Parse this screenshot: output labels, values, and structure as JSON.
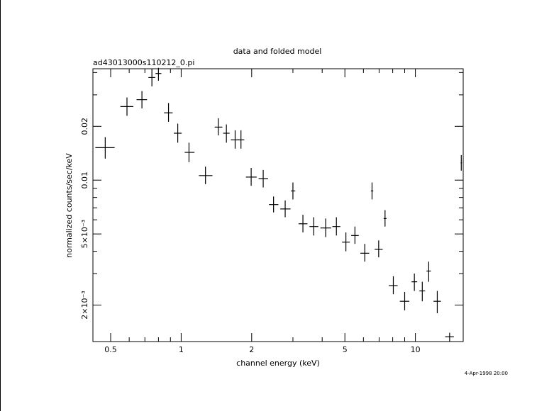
{
  "chart_data": {
    "type": "scatter",
    "title": "data and folded model",
    "subtitle": "ad43013000s110212_0.pi",
    "xlabel": "channel energy (keV)",
    "ylabel": "normalized counts/sec/keV",
    "timestamp": "4-Apr-1998 20:00",
    "x_scale": "log",
    "y_scale": "log",
    "xlim": [
      0.42,
      16.0
    ],
    "ylim": [
      0.00125,
      0.042
    ],
    "grid": false,
    "x_tick_labels": [
      {
        "value": 0.5,
        "label": "0.5"
      },
      {
        "value": 1,
        "label": "1"
      },
      {
        "value": 2,
        "label": "2"
      },
      {
        "value": 5,
        "label": "5"
      },
      {
        "value": 10,
        "label": "10"
      }
    ],
    "y_tick_labels": [
      {
        "value": 0.002,
        "label": "2×10⁻³"
      },
      {
        "value": 0.005,
        "label": "5×10⁻³"
      },
      {
        "value": 0.01,
        "label": "0.01"
      },
      {
        "value": 0.02,
        "label": "0.02"
      }
    ],
    "x_major_ticks": [
      0.5,
      1,
      2,
      5,
      10
    ],
    "x_minor_ticks": [
      0.6,
      0.7,
      0.8,
      0.9,
      3,
      4,
      6,
      7,
      8,
      9
    ],
    "y_major_ticks": [
      0.002,
      0.005,
      0.01,
      0.02
    ],
    "y_minor_ticks": [
      0.003,
      0.004,
      0.006,
      0.007,
      0.008,
      0.009,
      0.03,
      0.04
    ],
    "series": [
      {
        "points": [
          {
            "x": 0.474,
            "xlo": 0.43,
            "xhi": 0.52,
            "y": 0.0152,
            "ylo": 0.0132,
            "yhi": 0.0174
          },
          {
            "x": 0.587,
            "xlo": 0.55,
            "xhi": 0.625,
            "y": 0.0258,
            "ylo": 0.0229,
            "yhi": 0.029
          },
          {
            "x": 0.68,
            "xlo": 0.645,
            "xhi": 0.715,
            "y": 0.0282,
            "ylo": 0.0252,
            "yhi": 0.0315
          },
          {
            "x": 0.75,
            "xlo": 0.725,
            "xhi": 0.775,
            "y": 0.0375,
            "ylo": 0.0335,
            "yhi": 0.042
          },
          {
            "x": 0.8,
            "xlo": 0.777,
            "xhi": 0.823,
            "y": 0.0395,
            "ylo": 0.036,
            "yhi": 0.0425
          },
          {
            "x": 0.883,
            "xlo": 0.845,
            "xhi": 0.92,
            "y": 0.0238,
            "ylo": 0.0212,
            "yhi": 0.027
          },
          {
            "x": 0.967,
            "xlo": 0.93,
            "xhi": 1.005,
            "y": 0.0183,
            "ylo": 0.0162,
            "yhi": 0.0207
          },
          {
            "x": 1.08,
            "xlo": 1.035,
            "xhi": 1.14,
            "y": 0.0143,
            "ylo": 0.0126,
            "yhi": 0.0162
          },
          {
            "x": 1.27,
            "xlo": 1.19,
            "xhi": 1.36,
            "y": 0.0106,
            "ylo": 0.0095,
            "yhi": 0.0119
          },
          {
            "x": 1.44,
            "xlo": 1.39,
            "xhi": 1.5,
            "y": 0.0198,
            "ylo": 0.0178,
            "yhi": 0.0222
          },
          {
            "x": 1.56,
            "xlo": 1.51,
            "xhi": 1.61,
            "y": 0.0183,
            "ylo": 0.0162,
            "yhi": 0.0205
          },
          {
            "x": 1.7,
            "xlo": 1.63,
            "xhi": 1.77,
            "y": 0.0168,
            "ylo": 0.015,
            "yhi": 0.019
          },
          {
            "x": 1.8,
            "xlo": 1.74,
            "xhi": 1.86,
            "y": 0.0168,
            "ylo": 0.015,
            "yhi": 0.019
          },
          {
            "x": 1.99,
            "xlo": 1.89,
            "xhi": 2.1,
            "y": 0.0104,
            "ylo": 0.0093,
            "yhi": 0.0117
          },
          {
            "x": 2.24,
            "xlo": 2.14,
            "xhi": 2.35,
            "y": 0.0102,
            "ylo": 0.0091,
            "yhi": 0.0114
          },
          {
            "x": 2.48,
            "xlo": 2.37,
            "xhi": 2.6,
            "y": 0.0073,
            "ylo": 0.0066,
            "yhi": 0.0081
          },
          {
            "x": 2.78,
            "xlo": 2.65,
            "xhi": 2.93,
            "y": 0.0069,
            "ylo": 0.0062,
            "yhi": 0.0077
          },
          {
            "x": 3.0,
            "xlo": 2.94,
            "xhi": 3.07,
            "y": 0.0087,
            "ylo": 0.0078,
            "yhi": 0.0097
          },
          {
            "x": 3.31,
            "xlo": 3.17,
            "xhi": 3.46,
            "y": 0.0057,
            "ylo": 0.0051,
            "yhi": 0.0064
          },
          {
            "x": 3.68,
            "xlo": 3.53,
            "xhi": 3.85,
            "y": 0.0055,
            "ylo": 0.0049,
            "yhi": 0.0062
          },
          {
            "x": 4.14,
            "xlo": 3.93,
            "xhi": 4.37,
            "y": 0.0054,
            "ylo": 0.0048,
            "yhi": 0.0061
          },
          {
            "x": 4.6,
            "xlo": 4.42,
            "xhi": 4.78,
            "y": 0.0055,
            "ylo": 0.0049,
            "yhi": 0.0062
          },
          {
            "x": 5.05,
            "xlo": 4.86,
            "xhi": 5.25,
            "y": 0.0045,
            "ylo": 0.004,
            "yhi": 0.0051
          },
          {
            "x": 5.52,
            "xlo": 5.32,
            "xhi": 5.73,
            "y": 0.0049,
            "ylo": 0.0044,
            "yhi": 0.0055
          },
          {
            "x": 6.08,
            "xlo": 5.82,
            "xhi": 6.35,
            "y": 0.0039,
            "ylo": 0.0035,
            "yhi": 0.0044
          },
          {
            "x": 6.53,
            "xlo": 6.46,
            "xhi": 6.61,
            "y": 0.0087,
            "ylo": 0.0078,
            "yhi": 0.0097
          },
          {
            "x": 6.97,
            "xlo": 6.7,
            "xhi": 7.25,
            "y": 0.0041,
            "ylo": 0.0037,
            "yhi": 0.0046
          },
          {
            "x": 7.42,
            "xlo": 7.32,
            "xhi": 7.53,
            "y": 0.0061,
            "ylo": 0.0055,
            "yhi": 0.0068
          },
          {
            "x": 8.05,
            "xlo": 7.7,
            "xhi": 8.4,
            "y": 0.00257,
            "ylo": 0.0023,
            "yhi": 0.0029
          },
          {
            "x": 9.0,
            "xlo": 8.58,
            "xhi": 9.42,
            "y": 0.0021,
            "ylo": 0.00187,
            "yhi": 0.00237
          },
          {
            "x": 9.9,
            "xlo": 9.63,
            "xhi": 10.18,
            "y": 0.0027,
            "ylo": 0.0024,
            "yhi": 0.003
          },
          {
            "x": 10.7,
            "xlo": 10.4,
            "xhi": 11.0,
            "y": 0.0024,
            "ylo": 0.0021,
            "yhi": 0.0027
          },
          {
            "x": 11.4,
            "xlo": 11.15,
            "xhi": 11.65,
            "y": 0.0031,
            "ylo": 0.0027,
            "yhi": 0.0035
          },
          {
            "x": 12.4,
            "xlo": 11.95,
            "xhi": 12.85,
            "y": 0.0021,
            "ylo": 0.0018,
            "yhi": 0.0024
          },
          {
            "x": 14.0,
            "xlo": 13.4,
            "xhi": 14.6,
            "y": 0.00133,
            "ylo": 0.00125,
            "yhi": 0.0014
          },
          {
            "x": 15.7,
            "xlo": 15.6,
            "xhi": 15.8,
            "y": 0.0125,
            "ylo": 0.0113,
            "yhi": 0.0138
          }
        ]
      }
    ]
  }
}
